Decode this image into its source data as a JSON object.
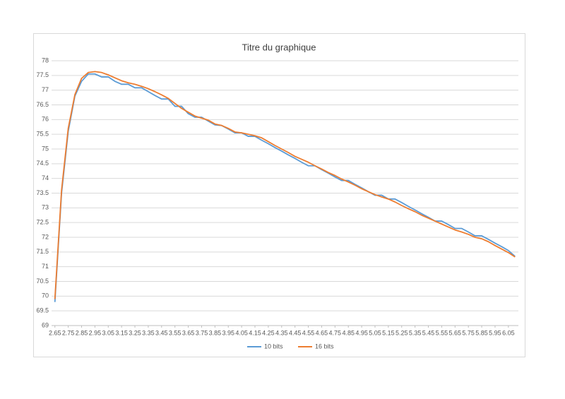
{
  "chart_data": {
    "type": "line",
    "title": "Titre du graphique",
    "x": [
      2.65,
      2.7,
      2.75,
      2.8,
      2.85,
      2.9,
      2.95,
      3.0,
      3.05,
      3.1,
      3.15,
      3.2,
      3.25,
      3.3,
      3.35,
      3.4,
      3.45,
      3.5,
      3.55,
      3.6,
      3.65,
      3.7,
      3.75,
      3.8,
      3.85,
      3.9,
      3.95,
      4.0,
      4.05,
      4.1,
      4.15,
      4.2,
      4.25,
      4.3,
      4.35,
      4.4,
      4.45,
      4.5,
      4.55,
      4.6,
      4.65,
      4.7,
      4.75,
      4.8,
      4.85,
      4.9,
      4.95,
      5.0,
      5.05,
      5.1,
      5.15,
      5.2,
      5.25,
      5.3,
      5.35,
      5.4,
      5.45,
      5.5,
      5.55,
      5.6,
      5.65,
      5.7,
      5.75,
      5.8,
      5.85,
      5.9,
      5.95,
      6.0,
      6.05,
      6.1
    ],
    "series": [
      {
        "name": "10 bits",
        "color": "#5b9bd5",
        "values": [
          69.8,
          73.5,
          75.6,
          76.8,
          77.3,
          77.55,
          77.55,
          77.45,
          77.45,
          77.3,
          77.2,
          77.2,
          77.08,
          77.08,
          76.95,
          76.82,
          76.7,
          76.7,
          76.45,
          76.45,
          76.2,
          76.08,
          76.08,
          75.95,
          75.82,
          75.8,
          75.68,
          75.55,
          75.55,
          75.43,
          75.43,
          75.3,
          75.18,
          75.05,
          74.93,
          74.8,
          74.68,
          74.55,
          74.43,
          74.43,
          74.3,
          74.18,
          74.05,
          73.93,
          73.93,
          73.8,
          73.68,
          73.55,
          73.43,
          73.43,
          73.3,
          73.3,
          73.18,
          73.05,
          72.93,
          72.8,
          72.68,
          72.55,
          72.55,
          72.43,
          72.3,
          72.3,
          72.18,
          72.05,
          72.05,
          71.93,
          71.8,
          71.68,
          71.55,
          71.35
        ]
      },
      {
        "name": "16 bits",
        "color": "#ed7d31",
        "values": [
          69.9,
          73.6,
          75.7,
          76.85,
          77.4,
          77.6,
          77.63,
          77.6,
          77.52,
          77.42,
          77.32,
          77.25,
          77.2,
          77.13,
          77.05,
          76.95,
          76.84,
          76.72,
          76.55,
          76.38,
          76.25,
          76.12,
          76.05,
          75.98,
          75.85,
          75.8,
          75.7,
          75.58,
          75.55,
          75.5,
          75.45,
          75.38,
          75.25,
          75.12,
          75.0,
          74.88,
          74.75,
          74.65,
          74.55,
          74.43,
          74.32,
          74.2,
          74.1,
          73.98,
          73.88,
          73.77,
          73.65,
          73.55,
          73.45,
          73.37,
          73.3,
          73.2,
          73.08,
          72.97,
          72.87,
          72.75,
          72.65,
          72.55,
          72.45,
          72.35,
          72.25,
          72.18,
          72.1,
          72.0,
          71.95,
          71.85,
          71.72,
          71.6,
          71.48,
          71.33
        ]
      }
    ],
    "xlim": [
      2.625,
      6.125
    ],
    "xticks": [
      2.65,
      2.75,
      2.85,
      2.95,
      3.05,
      3.15,
      3.25,
      3.35,
      3.45,
      3.55,
      3.65,
      3.75,
      3.85,
      3.95,
      4.05,
      4.15,
      4.25,
      4.35,
      4.45,
      4.55,
      4.65,
      4.75,
      4.85,
      4.95,
      5.05,
      5.15,
      5.25,
      5.35,
      5.45,
      5.55,
      5.65,
      5.75,
      5.85,
      5.95,
      6.05
    ],
    "ylim": [
      69,
      78
    ],
    "yticks": [
      69,
      69.5,
      70,
      70.5,
      71,
      71.5,
      72,
      72.5,
      73,
      73.5,
      74,
      74.5,
      75,
      75.5,
      76,
      76.5,
      77,
      77.5,
      78
    ],
    "grid": true,
    "legend": "bottom"
  }
}
